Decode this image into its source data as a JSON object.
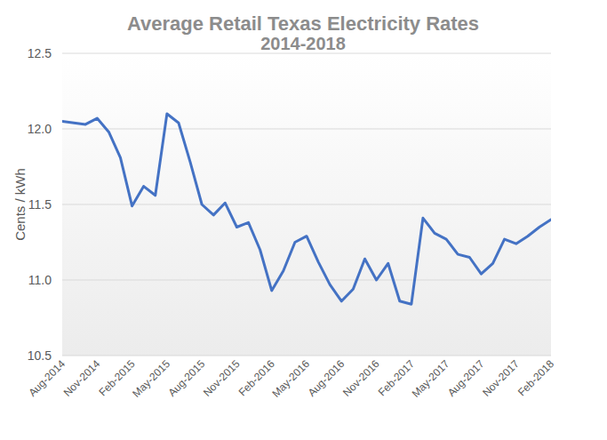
{
  "chart_data": {
    "type": "line",
    "title": "Average Retail Texas Electricity Rates",
    "subtitle": "2014-2018",
    "y_label": "Cents / kWh",
    "color": "#4472c4",
    "categories": [
      "Aug-2014",
      null,
      null,
      "Nov-2014",
      null,
      null,
      "Feb-2015",
      null,
      null,
      "May-2015",
      null,
      null,
      "Aug-2015",
      null,
      null,
      "Nov-2015",
      null,
      null,
      "Feb-2016",
      null,
      null,
      "May-2016",
      null,
      null,
      "Aug-2016",
      null,
      null,
      "Nov-2016",
      null,
      null,
      "Feb-2017",
      null,
      null,
      "May-2017",
      null,
      null,
      "Aug-2017",
      null,
      null,
      "Nov-2017",
      null,
      null,
      "Feb-2018"
    ],
    "values": [
      12.05,
      12.04,
      12.03,
      12.07,
      11.98,
      11.81,
      11.49,
      11.62,
      11.56,
      12.1,
      12.04,
      11.78,
      11.5,
      11.43,
      11.51,
      11.35,
      11.38,
      11.2,
      10.93,
      11.06,
      11.25,
      11.29,
      11.12,
      10.97,
      10.86,
      10.94,
      11.14,
      11.0,
      11.11,
      10.86,
      10.84,
      11.41,
      11.31,
      11.27,
      11.17,
      11.15,
      11.04,
      11.11,
      11.27,
      11.24,
      11.29,
      11.35,
      11.4
    ],
    "ylim": [
      10.5,
      12.5
    ],
    "yticks": [
      10.5,
      {
        "value": 11,
        "label": "11.0"
      },
      11.5,
      {
        "value": 12,
        "label": "12.0"
      },
      12.5
    ],
    "grid": true
  }
}
